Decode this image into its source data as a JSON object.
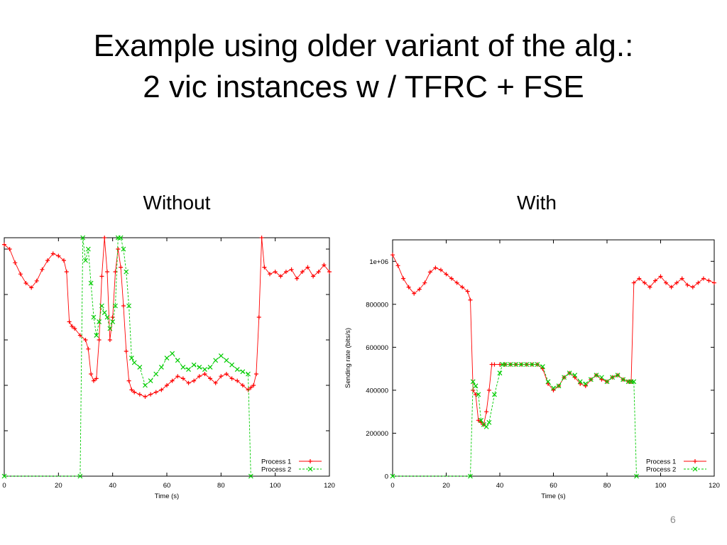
{
  "slide": {
    "title_line1": "Example using older variant of the alg.:",
    "title_line2": "2 vic instances w / TFRC + FSE",
    "page_number": "6"
  },
  "captions": {
    "left": "Without",
    "right": "With"
  },
  "colors": {
    "process1": "#ff0000",
    "process2": "#00cc00",
    "frame": "#000000"
  },
  "chart_data": [
    {
      "type": "line",
      "caption": "Without",
      "xlabel": "Time (s)",
      "ylabel": "",
      "xlim": [
        0,
        120
      ],
      "ylim": [
        0,
        1050000
      ],
      "x_ticks": [
        0,
        20,
        40,
        60,
        80,
        100,
        120
      ],
      "y_ticks": [],
      "grid": false,
      "legend_position": "bottom-right",
      "series": [
        {
          "name": "Process 1",
          "color": "#ff0000",
          "marker": "+",
          "x": [
            0,
            2,
            4,
            6,
            8,
            10,
            12,
            14,
            16,
            18,
            20,
            22,
            23,
            24,
            25,
            26,
            28,
            30,
            31,
            32,
            33,
            34,
            35,
            36,
            37,
            38,
            39,
            40,
            41,
            42,
            43,
            44,
            45,
            46,
            47,
            48,
            50,
            52,
            54,
            56,
            58,
            60,
            62,
            64,
            66,
            68,
            70,
            72,
            74,
            76,
            78,
            80,
            82,
            84,
            86,
            88,
            90,
            91,
            92,
            93,
            94,
            95,
            96,
            98,
            100,
            102,
            104,
            106,
            108,
            110,
            112,
            114,
            116,
            118,
            120
          ],
          "y": [
            1020000,
            1000000,
            940000,
            890000,
            850000,
            830000,
            860000,
            910000,
            950000,
            980000,
            970000,
            950000,
            900000,
            680000,
            660000,
            650000,
            620000,
            600000,
            560000,
            450000,
            420000,
            430000,
            600000,
            880000,
            1050000,
            900000,
            600000,
            700000,
            900000,
            1000000,
            920000,
            750000,
            550000,
            420000,
            380000,
            370000,
            360000,
            350000,
            360000,
            370000,
            380000,
            400000,
            420000,
            440000,
            430000,
            410000,
            420000,
            440000,
            450000,
            430000,
            410000,
            440000,
            450000,
            430000,
            420000,
            400000,
            380000,
            390000,
            400000,
            450000,
            700000,
            1050000,
            920000,
            890000,
            900000,
            880000,
            900000,
            910000,
            870000,
            900000,
            920000,
            880000,
            900000,
            930000,
            900000
          ]
        },
        {
          "name": "Process 2",
          "color": "#00cc00",
          "marker": "x",
          "x": [
            0,
            28,
            29,
            30,
            31,
            32,
            33,
            34,
            35,
            36,
            37,
            38,
            39,
            40,
            41,
            42,
            43,
            44,
            45,
            46,
            47,
            48,
            50,
            52,
            54,
            56,
            58,
            60,
            62,
            64,
            66,
            68,
            70,
            72,
            74,
            76,
            78,
            80,
            82,
            84,
            86,
            88,
            90,
            91
          ],
          "y": [
            0,
            0,
            1050000,
            950000,
            1000000,
            850000,
            700000,
            620000,
            680000,
            750000,
            720000,
            700000,
            650000,
            680000,
            750000,
            1050000,
            1050000,
            1000000,
            900000,
            750000,
            520000,
            500000,
            480000,
            400000,
            420000,
            450000,
            480000,
            520000,
            540000,
            510000,
            480000,
            470000,
            490000,
            480000,
            470000,
            480000,
            510000,
            530000,
            510000,
            490000,
            470000,
            460000,
            450000,
            0
          ]
        }
      ]
    },
    {
      "type": "line",
      "caption": "With",
      "xlabel": "Time (s)",
      "ylabel": "Sending rate (bits/s)",
      "xlim": [
        0,
        120
      ],
      "ylim": [
        0,
        1100000
      ],
      "x_ticks": [
        0,
        20,
        40,
        60,
        80,
        100,
        120
      ],
      "y_ticks": [
        0,
        200000,
        400000,
        600000,
        800000,
        1000000
      ],
      "y_tick_labels": [
        "0",
        "200000",
        "400000",
        "600000",
        "800000",
        "1e+06"
      ],
      "grid": false,
      "legend_position": "bottom-right",
      "series": [
        {
          "name": "Process 1",
          "color": "#ff0000",
          "marker": "+",
          "x": [
            0,
            2,
            4,
            6,
            8,
            10,
            12,
            14,
            16,
            18,
            20,
            22,
            24,
            26,
            28,
            29,
            30,
            31,
            32,
            33,
            34,
            35,
            36,
            37,
            38,
            40,
            42,
            44,
            46,
            48,
            50,
            52,
            54,
            56,
            58,
            60,
            62,
            64,
            66,
            68,
            70,
            72,
            74,
            76,
            78,
            80,
            82,
            84,
            86,
            88,
            89,
            90,
            92,
            94,
            96,
            98,
            100,
            102,
            104,
            106,
            108,
            110,
            112,
            114,
            116,
            118,
            120
          ],
          "y": [
            1030000,
            980000,
            920000,
            880000,
            850000,
            870000,
            900000,
            950000,
            970000,
            960000,
            940000,
            920000,
            900000,
            880000,
            860000,
            820000,
            400000,
            380000,
            260000,
            250000,
            240000,
            300000,
            400000,
            520000,
            520000,
            520000,
            520000,
            520000,
            520000,
            520000,
            520000,
            520000,
            520000,
            500000,
            430000,
            400000,
            420000,
            460000,
            480000,
            460000,
            430000,
            420000,
            450000,
            470000,
            450000,
            440000,
            460000,
            470000,
            450000,
            440000,
            440000,
            900000,
            920000,
            900000,
            880000,
            910000,
            930000,
            900000,
            880000,
            900000,
            920000,
            890000,
            880000,
            900000,
            920000,
            910000,
            900000
          ]
        },
        {
          "name": "Process 2",
          "color": "#00cc00",
          "marker": "x",
          "x": [
            0,
            29,
            30,
            31,
            32,
            33,
            34,
            35,
            36,
            38,
            40,
            41,
            42,
            44,
            46,
            48,
            50,
            52,
            54,
            56,
            58,
            60,
            62,
            64,
            66,
            68,
            70,
            72,
            74,
            76,
            78,
            80,
            82,
            84,
            86,
            88,
            89,
            90,
            91
          ],
          "y": [
            0,
            0,
            440000,
            420000,
            380000,
            260000,
            240000,
            230000,
            250000,
            380000,
            480000,
            520000,
            520000,
            520000,
            520000,
            520000,
            520000,
            520000,
            520000,
            510000,
            440000,
            410000,
            420000,
            460000,
            480000,
            470000,
            440000,
            430000,
            450000,
            470000,
            460000,
            440000,
            460000,
            470000,
            450000,
            440000,
            440000,
            440000,
            0
          ]
        }
      ]
    }
  ]
}
